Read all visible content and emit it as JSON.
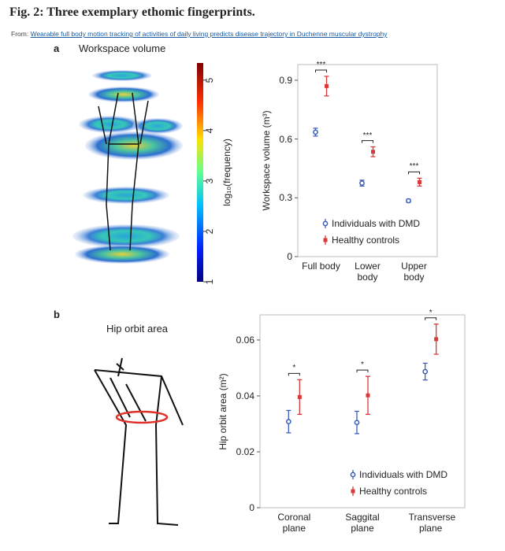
{
  "header": {
    "title": "Fig. 2: Three exemplary ethomic fingerprints.",
    "source_prefix": "From:",
    "source_link": "Wearable full body motion tracking of activities of daily living predicts disease trajectory in Duchenne muscular dystrophy"
  },
  "panels": [
    {
      "label": "a",
      "title": "Workspace volume"
    },
    {
      "label": "b",
      "title": "Hip orbit area"
    }
  ],
  "colorbar": {
    "label": "log₁₀(frequency)",
    "lim": [
      1,
      5.34
    ],
    "ticks": [
      1,
      2,
      3,
      4,
      5
    ]
  },
  "chart_data": [
    {
      "type": "errorbar",
      "y_label": "Workspace volume (m³)",
      "categories": [
        "Full body",
        "Lower body",
        "Upper body"
      ],
      "series": [
        {
          "name": "Individuals with DMD",
          "color": "#3b5fb8",
          "values": [
            0.635,
            0.375,
            0.285
          ],
          "errors": [
            0.02,
            0.015,
            0.008
          ]
        },
        {
          "name": "Healthy controls",
          "color": "#d83a3a",
          "values": [
            0.87,
            0.535,
            0.38
          ],
          "errors": [
            0.05,
            0.025,
            0.02
          ]
        }
      ],
      "significance": [
        "***",
        "***",
        "***"
      ],
      "ylim": [
        0,
        0.98
      ],
      "yticks": [
        0,
        0.3,
        0.6,
        0.9
      ],
      "legend": "lower right"
    },
    {
      "type": "errorbar",
      "y_label": "Hip orbit area (m²)",
      "categories": [
        "Coronal plane",
        "Saggital plane",
        "Transverse plane"
      ],
      "series": [
        {
          "name": "Individuals with DMD",
          "color": "#3b5fb8",
          "values": [
            0.0308,
            0.0305,
            0.0487
          ],
          "errors": [
            0.004,
            0.004,
            0.003
          ]
        },
        {
          "name": "Healthy controls",
          "color": "#d83a3a",
          "values": [
            0.0396,
            0.0402,
            0.0603
          ],
          "errors": [
            0.0062,
            0.0068,
            0.0054
          ]
        }
      ],
      "significance": [
        "*",
        "*",
        "*"
      ],
      "ylim": [
        0,
        0.069
      ],
      "yticks": [
        0,
        0.02,
        0.04,
        0.06
      ],
      "legend": "lower right"
    }
  ]
}
